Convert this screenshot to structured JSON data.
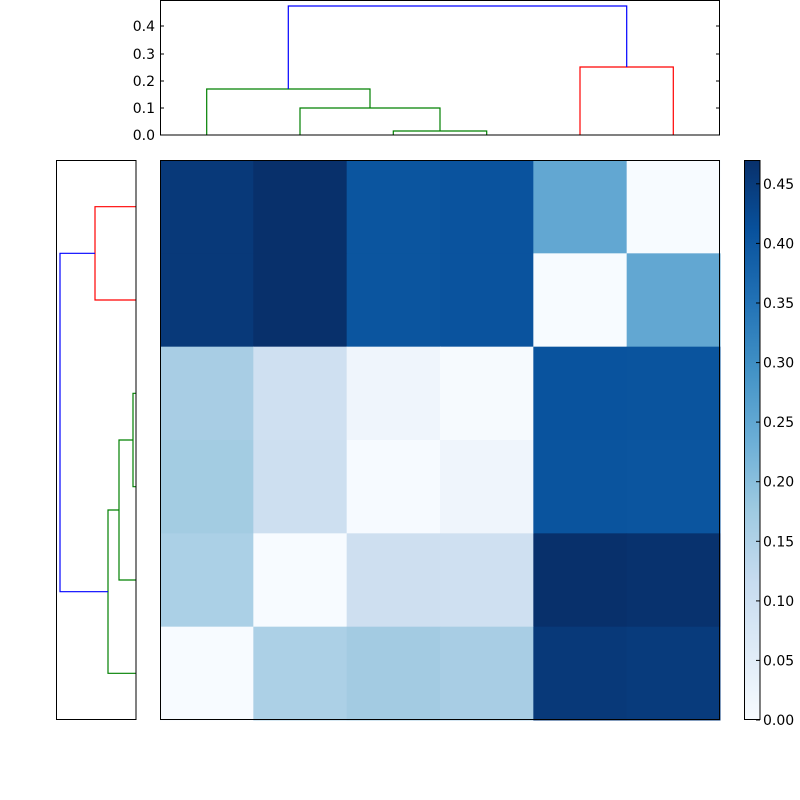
{
  "chart_data": [
    {
      "type": "heatmap",
      "title": "",
      "xlabel": "",
      "ylabel": "",
      "colormap": "Blues",
      "rows": 6,
      "cols": 6,
      "values": [
        [
          0.44,
          0.46,
          0.39,
          0.39,
          0.25,
          0.0
        ],
        [
          0.44,
          0.46,
          0.39,
          0.39,
          0.0,
          0.25
        ],
        [
          0.18,
          0.12,
          0.03,
          0.01,
          0.39,
          0.39
        ],
        [
          0.19,
          0.12,
          0.01,
          0.03,
          0.39,
          0.39
        ],
        [
          0.17,
          0.0,
          0.12,
          0.12,
          0.46,
          0.45
        ],
        [
          0.0,
          0.17,
          0.19,
          0.18,
          0.44,
          0.44
        ]
      ],
      "cell_colors": [
        [
          "#083979",
          "#08306b",
          "#0b559f",
          "#0a539e",
          "#62a7d2",
          "#f7fbff"
        ],
        [
          "#083979",
          "#08306b",
          "#0b559f",
          "#0a539e",
          "#f7fbff",
          "#62a7d2"
        ],
        [
          "#a8cde4",
          "#cfe0f1",
          "#eff5fc",
          "#f6fafe",
          "#09539e",
          "#0a549e"
        ],
        [
          "#a3cce2",
          "#cddff0",
          "#f6faff",
          "#eff5fc",
          "#0a549e",
          "#0b559f"
        ],
        [
          "#abd0e6",
          "#f7fbff",
          "#cedff0",
          "#cfe0f1",
          "#08306b",
          "#08326e"
        ],
        [
          "#f7fbff",
          "#acd0e6",
          "#a3cbe2",
          "#a8cde4",
          "#083979",
          "#083b7c"
        ]
      ]
    },
    {
      "type": "dendrogram",
      "orientation": "top",
      "ylim": [
        0,
        0.49
      ],
      "yticks": [
        "0.0",
        "0.1",
        "0.2",
        "0.3",
        "0.4"
      ],
      "links": [
        {
          "left": 4,
          "right": 5,
          "height": 0.015,
          "color": "#008000"
        },
        {
          "left": 2,
          "right": "c0",
          "height": 0.1,
          "color": "#008000"
        },
        {
          "left": 1,
          "right": "c1",
          "height": 0.17,
          "color": "#008000"
        },
        {
          "left": 5,
          "right": 6,
          "height": 0.25,
          "color": "#ff0000"
        },
        {
          "left": "c2",
          "right": "c3",
          "height": 0.475,
          "color": "#0000ff"
        }
      ]
    },
    {
      "type": "dendrogram",
      "orientation": "left",
      "links": [
        {
          "top": 1,
          "bottom": 2,
          "height": 0.25,
          "color": "#ff0000"
        },
        {
          "top": 3,
          "bottom": 4,
          "height": 0.015,
          "color": "#008000"
        },
        {
          "top": "c1",
          "bottom": 5,
          "height": 0.1,
          "color": "#008000"
        },
        {
          "top": "c2",
          "bottom": 6,
          "height": 0.17,
          "color": "#008000"
        },
        {
          "top": "c0",
          "bottom": "c3",
          "height": 0.475,
          "color": "#0000ff"
        }
      ]
    },
    {
      "type": "colorbar",
      "range": [
        0,
        0.47
      ],
      "ticks": [
        "0.00",
        "0.05",
        "0.10",
        "0.15",
        "0.20",
        "0.25",
        "0.30",
        "0.35",
        "0.40",
        "0.45"
      ]
    }
  ],
  "top_dendrogram": {
    "ytick_labels": [
      "0.0",
      "0.1",
      "0.2",
      "0.3",
      "0.4"
    ]
  },
  "colorbar": {
    "tick_labels": [
      "0.00",
      "0.05",
      "0.10",
      "0.15",
      "0.20",
      "0.25",
      "0.30",
      "0.35",
      "0.40",
      "0.45"
    ]
  }
}
